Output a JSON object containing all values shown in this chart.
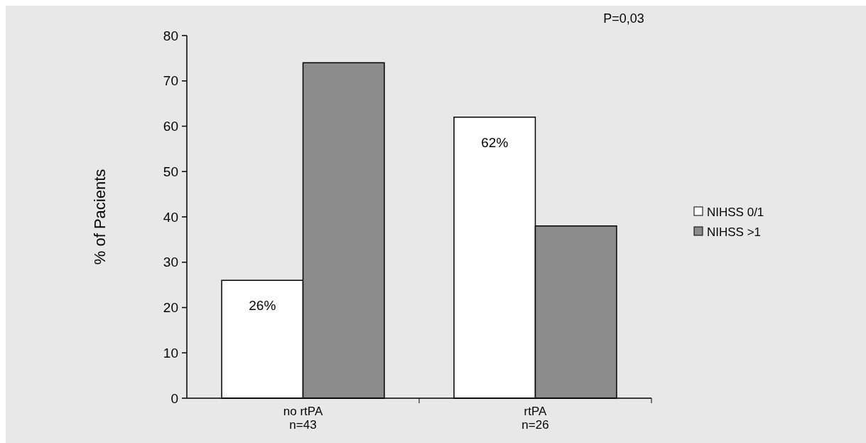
{
  "chart_data": {
    "type": "bar",
    "ylabel": "% of Pacients",
    "categories": [
      "no rtPA\nn=43",
      "rtPA\nn=26"
    ],
    "series": [
      {
        "name": "NIHSS 0/1",
        "color": "#ffffff",
        "values": [
          26,
          62
        ],
        "value_labels": [
          "26%",
          "62%"
        ]
      },
      {
        "name": "NIHSS >1",
        "color": "#8c8c8c",
        "values": [
          74,
          38
        ],
        "value_labels": [
          null,
          null
        ]
      }
    ],
    "ylim": [
      0,
      80
    ],
    "yticks": [
      0,
      10,
      20,
      30,
      40,
      50,
      60,
      70,
      80
    ],
    "grid": false,
    "legend": "right",
    "annotations": [
      "P=0,03"
    ]
  }
}
